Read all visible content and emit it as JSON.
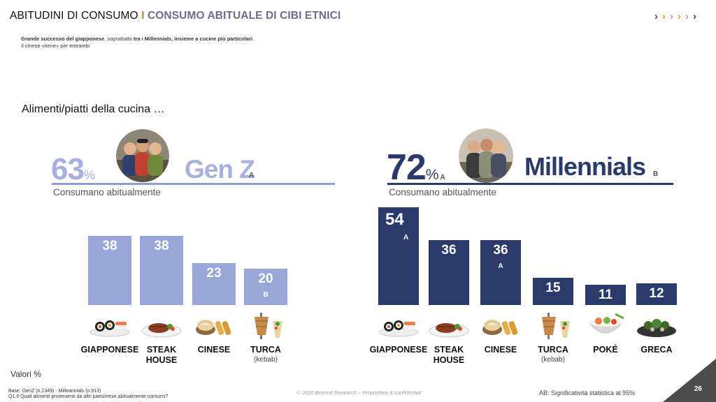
{
  "header": {
    "prefix": "ABITUDINI DI CONSUMO",
    "separator": "I",
    "title": "CONSUMO ABITUALE  DI CIBI ETNICI",
    "nav_icon": "chevrons-right-icon",
    "chevron_colors": [
      "#3b4a86",
      "#e6a23a",
      "#9aa0c8",
      "#e6a23a",
      "#9aa0c8",
      "#3b4a86"
    ]
  },
  "subtitle": {
    "line1_bold_a": "Grande successo del giapponese",
    "line1_normal_a": ", soprattutto ",
    "line1_bold_b": "tra i Millennials, insieme a cucine più particolari",
    "line1_normal_b": ".",
    "line2": "Il cinese «tiene» per entrambi"
  },
  "lead": "Alimenti/piatti della cucina …",
  "colors": {
    "genz_bar": "#98a6d8",
    "mill_bar": "#293a6b",
    "genz_accent": "#8f9ed6",
    "mill_accent": "#293a6b"
  },
  "groups": {
    "genz": {
      "pct_value": "63",
      "pct_sign": "%",
      "name": "Gen Z",
      "sig": "A",
      "consume_label": "Consumano abitualmente",
      "photo_icon": "group-photo-genz"
    },
    "mill": {
      "pct_value": "72",
      "pct_sign": "%",
      "pct_sig": "A",
      "name": "Millennials",
      "sig": "B",
      "consume_label": "Consumano abitualmente",
      "photo_icon": "group-photo-millennials"
    }
  },
  "chart_data": [
    {
      "type": "bar",
      "group": "Gen Z",
      "categories": [
        "GIAPPONESE",
        "STEAK HOUSE",
        "CINESE",
        "TURCA"
      ],
      "category_lines": [
        [
          "GIAPPONESE"
        ],
        [
          "STEAK",
          "HOUSE"
        ],
        [
          "CINESE"
        ],
        [
          "TURCA"
        ]
      ],
      "category_notes": [
        "",
        "",
        "",
        "(kebab)"
      ],
      "values": [
        38,
        38,
        23,
        20
      ],
      "significance": [
        "",
        "",
        "",
        "B"
      ],
      "food_icons": [
        "sushi-icon",
        "steak-plate-icon",
        "dumplings-icon",
        "kebab-icon"
      ],
      "ylim": [
        0,
        54
      ]
    },
    {
      "type": "bar",
      "group": "Millennials",
      "categories": [
        "GIAPPONESE",
        "STEAK HOUSE",
        "CINESE",
        "TURCA",
        "POKÉ",
        "GRECA"
      ],
      "category_lines": [
        [
          "GIAPPONESE"
        ],
        [
          "STEAK",
          "HOUSE"
        ],
        [
          "CINESE"
        ],
        [
          "TURCA"
        ],
        [
          "POKÉ"
        ],
        [
          "GRECA"
        ]
      ],
      "category_notes": [
        "",
        "",
        "",
        "(kebab)",
        "",
        ""
      ],
      "values": [
        54,
        36,
        36,
        15,
        11,
        12
      ],
      "significance": [
        "A",
        "",
        "A",
        "",
        "",
        ""
      ],
      "food_icons": [
        "sushi-icon",
        "steak-plate-icon",
        "dumplings-icon",
        "kebab-icon",
        "poke-bowl-icon",
        "greek-dish-icon"
      ],
      "ylim": [
        0,
        54
      ]
    }
  ],
  "valori": "Valori %",
  "footer": {
    "base": "Base: GenZ (n.2349) - Milleannials (n.913)",
    "question": "Q1.9 Quali alimenti provenienti da altri paesi/etnie abitualmente consumi?",
    "copyright": "© 2020 Beyond Research – Proprietary & confidential",
    "ab_note": "AB: Significatività statistica al 95%",
    "page_number": "26"
  }
}
